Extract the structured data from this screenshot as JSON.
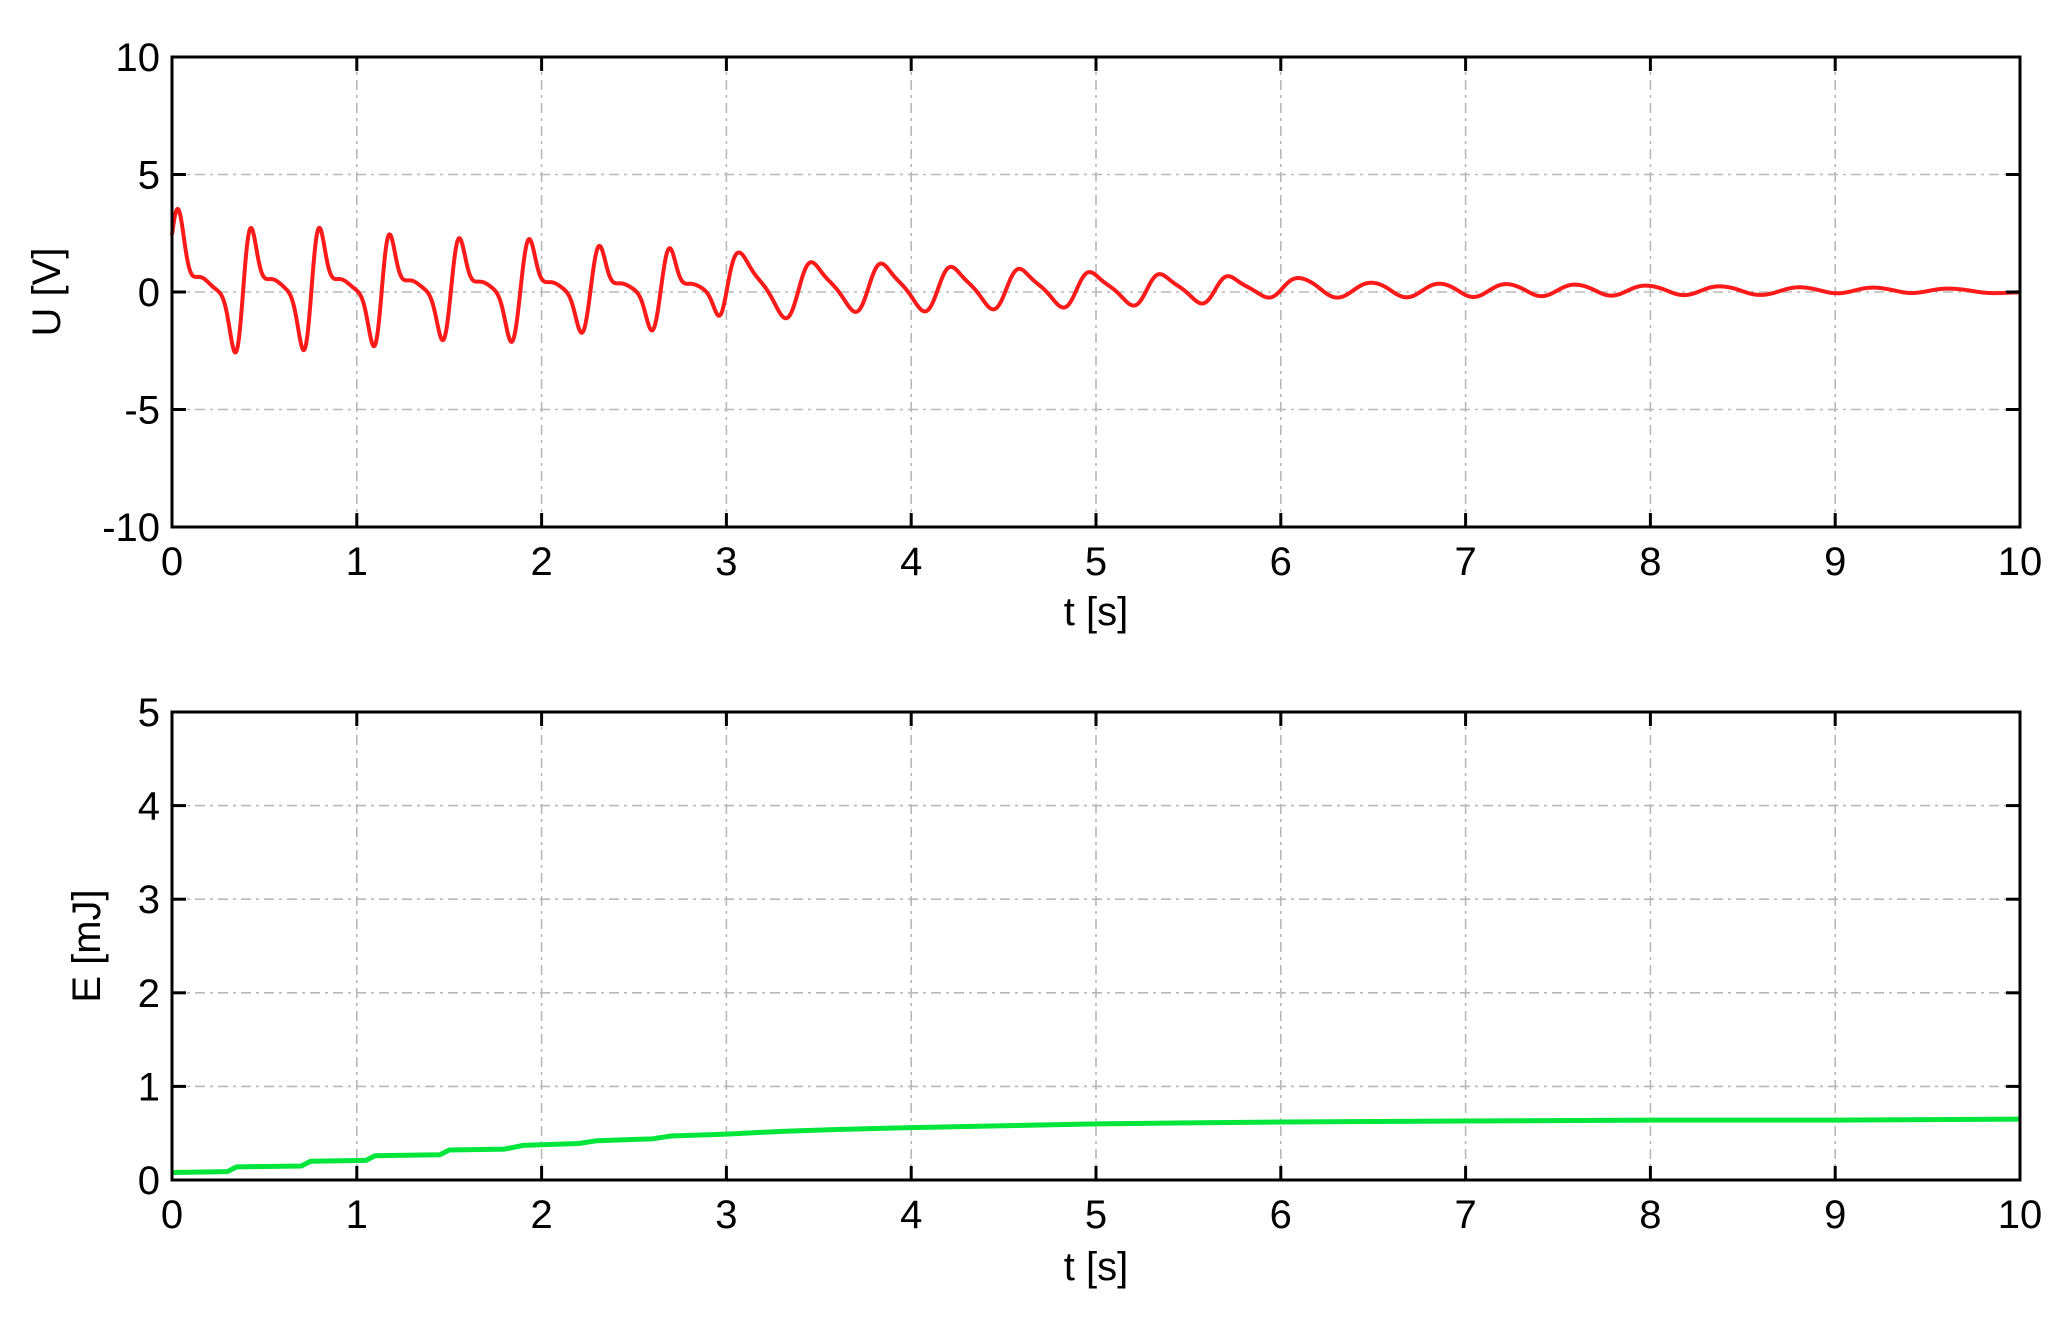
{
  "chart_data": [
    {
      "type": "line",
      "xlabel": "t [s]",
      "ylabel": "U [V]",
      "xlim": [
        0,
        10
      ],
      "ylim": [
        -10,
        10
      ],
      "xticks": [
        0,
        1,
        2,
        3,
        4,
        5,
        6,
        7,
        8,
        9,
        10
      ],
      "yticks": [
        -10,
        -5,
        0,
        5,
        10
      ],
      "grid": true,
      "series": [
        {
          "color": "#ff1a1a",
          "description_peaks": "damped oscillating voltage; peak/trough pairs",
          "peaks": [
            {
              "t": 0.03,
              "max": 3.5,
              "min_t": 0.35,
              "min": -2.9
            },
            {
              "t": 0.42,
              "max": 3.0,
              "min_t": 0.72,
              "min": -2.8
            },
            {
              "t": 0.79,
              "max": 3.0,
              "min_t": 1.1,
              "min": -2.6
            },
            {
              "t": 1.17,
              "max": 2.7,
              "min_t": 1.47,
              "min": -2.2
            },
            {
              "t": 1.55,
              "max": 2.4,
              "min_t": 1.84,
              "min": -2.2
            },
            {
              "t": 1.93,
              "max": 2.3,
              "min_t": 2.22,
              "min": -1.8
            },
            {
              "t": 2.31,
              "max": 2.0,
              "min_t": 2.6,
              "min": -1.7
            },
            {
              "t": 2.69,
              "max": 1.9,
              "min_t": 2.97,
              "min": -1.5
            },
            {
              "t": 3.06,
              "max": 1.7,
              "min_t": 3.34,
              "min": -1.4
            },
            {
              "t": 3.44,
              "max": 1.5,
              "min_t": 3.72,
              "min": -1.1
            },
            {
              "t": 3.82,
              "max": 1.4,
              "min_t": 4.09,
              "min": -1.0
            },
            {
              "t": 4.2,
              "max": 1.2,
              "min_t": 4.46,
              "min": -0.9
            },
            {
              "t": 4.57,
              "max": 1.1,
              "min_t": 4.84,
              "min": -0.8
            },
            {
              "t": 4.95,
              "max": 0.95,
              "min_t": 5.22,
              "min": -0.7
            },
            {
              "t": 5.33,
              "max": 0.85,
              "min_t": 5.59,
              "min": -0.6
            },
            {
              "t": 5.7,
              "max": 0.75,
              "min_t": 5.96,
              "min": -0.5
            },
            {
              "t": 6.07,
              "max": 0.65,
              "min_t": 6.34,
              "min": -0.45
            },
            {
              "t": 6.45,
              "max": 0.55,
              "min_t": 6.71,
              "min": -0.4
            },
            {
              "t": 6.83,
              "max": 0.5,
              "min_t": 7.05,
              "min": -0.35
            },
            {
              "t": 7.2,
              "max": 0.42,
              "min_t": 7.42,
              "min": -0.3
            },
            {
              "t": 7.57,
              "max": 0.38,
              "min_t": 7.8,
              "min": -0.25
            },
            {
              "t": 7.95,
              "max": 0.32,
              "min_t": 8.2,
              "min": -0.2
            },
            {
              "t": 8.35,
              "max": 0.28,
              "min_t": 8.6,
              "min": -0.15
            },
            {
              "t": 8.8,
              "max": 0.22,
              "min_t": 9.0,
              "min": -0.1
            },
            {
              "t": 9.2,
              "max": 0.2,
              "min_t": 9.4,
              "min": -0.08
            },
            {
              "t": 9.6,
              "max": 0.15,
              "min_t": 9.85,
              "min": -0.05
            }
          ]
        }
      ]
    },
    {
      "type": "line",
      "xlabel": "t [s]",
      "ylabel": "E [mJ]",
      "xlim": [
        0,
        10
      ],
      "ylim": [
        0,
        5
      ],
      "xticks": [
        0,
        1,
        2,
        3,
        4,
        5,
        6,
        7,
        8,
        9,
        10
      ],
      "yticks": [
        0,
        1,
        2,
        3,
        4,
        5
      ],
      "grid": true,
      "series": [
        {
          "color": "#00e63a",
          "x": [
            0,
            0.3,
            0.35,
            0.7,
            0.75,
            1.05,
            1.1,
            1.45,
            1.5,
            1.8,
            1.9,
            2.2,
            2.3,
            2.6,
            2.7,
            3.0,
            3.3,
            3.6,
            4.0,
            4.5,
            5.0,
            5.5,
            6.0,
            7.0,
            8.0,
            9.0,
            10.0
          ],
          "y": [
            0.08,
            0.09,
            0.14,
            0.15,
            0.2,
            0.21,
            0.26,
            0.27,
            0.32,
            0.33,
            0.37,
            0.39,
            0.42,
            0.44,
            0.47,
            0.49,
            0.52,
            0.54,
            0.56,
            0.58,
            0.6,
            0.61,
            0.62,
            0.63,
            0.64,
            0.64,
            0.65
          ]
        }
      ]
    }
  ]
}
